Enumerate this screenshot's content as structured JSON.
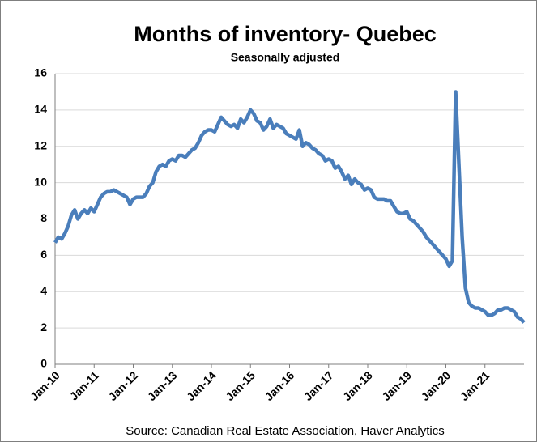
{
  "chart_data": {
    "type": "line",
    "title": "Months of inventory- Quebec",
    "subtitle": "Seasonally adjusted",
    "source": "Source: Canadian Real Estate Association, Haver Analytics",
    "categories": [
      "Jan-10",
      null,
      null,
      null,
      null,
      null,
      null,
      null,
      null,
      null,
      null,
      null,
      "Jan-11",
      null,
      null,
      null,
      null,
      null,
      null,
      null,
      null,
      null,
      null,
      null,
      "Jan-12",
      null,
      null,
      null,
      null,
      null,
      null,
      null,
      null,
      null,
      null,
      null,
      "Jan-13",
      null,
      null,
      null,
      null,
      null,
      null,
      null,
      null,
      null,
      null,
      null,
      "Jan-14",
      null,
      null,
      null,
      null,
      null,
      null,
      null,
      null,
      null,
      null,
      null,
      "Jan-15",
      null,
      null,
      null,
      null,
      null,
      null,
      null,
      null,
      null,
      null,
      null,
      "Jan-16",
      null,
      null,
      null,
      null,
      null,
      null,
      null,
      null,
      null,
      null,
      null,
      "Jan-17",
      null,
      null,
      null,
      null,
      null,
      null,
      null,
      null,
      null,
      null,
      null,
      "Jan-18",
      null,
      null,
      null,
      null,
      null,
      null,
      null,
      null,
      null,
      null,
      null,
      "Jan-19",
      null,
      null,
      null,
      null,
      null,
      null,
      null,
      null,
      null,
      null,
      null,
      "Jan-20",
      null,
      null,
      null,
      null,
      null,
      null,
      null,
      null,
      null,
      null,
      null,
      "Jan-21",
      null,
      null,
      null,
      null,
      null,
      null,
      null,
      null,
      null,
      null,
      null,
      null
    ],
    "series": [
      {
        "name": "Months of inventory",
        "color": "#4a7ebb",
        "values": [
          6.7,
          7.0,
          6.9,
          7.2,
          7.6,
          8.2,
          8.5,
          8.0,
          8.3,
          8.5,
          8.3,
          8.6,
          8.4,
          8.8,
          9.2,
          9.4,
          9.5,
          9.5,
          9.6,
          9.5,
          9.4,
          9.3,
          9.2,
          8.8,
          9.1,
          9.2,
          9.2,
          9.2,
          9.4,
          9.8,
          10.0,
          10.6,
          10.9,
          11.0,
          10.9,
          11.2,
          11.3,
          11.2,
          11.5,
          11.5,
          11.4,
          11.6,
          11.8,
          11.9,
          12.2,
          12.6,
          12.8,
          12.9,
          12.9,
          12.8,
          13.2,
          13.6,
          13.4,
          13.2,
          13.1,
          13.2,
          13.0,
          13.5,
          13.3,
          13.6,
          14.0,
          13.8,
          13.4,
          13.3,
          12.9,
          13.1,
          13.5,
          13.0,
          13.2,
          13.1,
          13.0,
          12.7,
          12.6,
          12.5,
          12.4,
          12.9,
          12.0,
          12.2,
          12.1,
          11.9,
          11.8,
          11.6,
          11.5,
          11.2,
          11.3,
          11.2,
          10.8,
          10.9,
          10.6,
          10.2,
          10.4,
          9.9,
          10.2,
          10.0,
          9.9,
          9.6,
          9.7,
          9.6,
          9.2,
          9.1,
          9.1,
          9.1,
          9.0,
          9.0,
          8.7,
          8.4,
          8.3,
          8.3,
          8.4,
          8.0,
          7.9,
          7.7,
          7.5,
          7.3,
          7.0,
          6.8,
          6.6,
          6.4,
          6.2,
          6.0,
          5.8,
          5.4,
          5.7,
          15.0,
          11.0,
          7.0,
          4.2,
          3.4,
          3.2,
          3.1,
          3.1,
          3.0,
          2.9,
          2.7,
          2.7,
          2.8,
          3.0,
          3.0,
          3.1,
          3.1,
          3.0,
          2.9,
          2.6,
          2.5,
          2.3
        ]
      }
    ],
    "ylim": [
      0,
      16
    ],
    "yticks": [
      0,
      2,
      4,
      6,
      8,
      10,
      12,
      14,
      16
    ],
    "grid": true
  }
}
